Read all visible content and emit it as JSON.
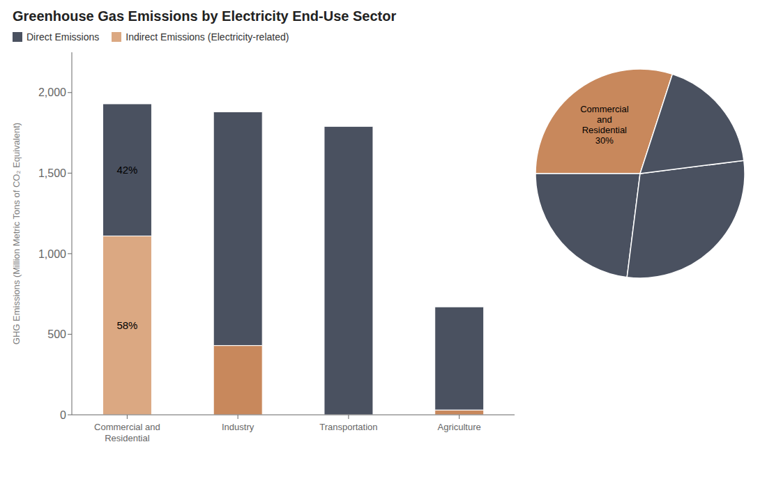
{
  "chart_data": [
    {
      "type": "bar",
      "title": "Greenhouse Gas Emissions by Electricity End-Use Sector",
      "categories": [
        "Commercial and Residential",
        "Industry",
        "Transportation",
        "Agriculture"
      ],
      "series": [
        {
          "name": "Indirect Emissions (Electricity-related)",
          "color": "#DBA882",
          "colors": [
            "#DBA882",
            "#C8885C",
            "#C8885C",
            "#C8885C"
          ],
          "values": [
            1110,
            430,
            0,
            30
          ]
        },
        {
          "name": "Direct Emissions",
          "color": "#4A5160",
          "values": [
            820,
            1450,
            1790,
            640
          ]
        }
      ],
      "stacked": true,
      "ylabel": "GHG Emissions (Million Metric Tons of CO₂ Equivalent)",
      "ylim": [
        0,
        2250
      ],
      "yticks": [
        0,
        500,
        {
          "value": 1000,
          "label": "1,000"
        },
        {
          "value": 1500,
          "label": "1,500"
        },
        {
          "value": 2000,
          "label": "2,000"
        }
      ],
      "grid": false,
      "legend": "upper left",
      "annotations": [
        {
          "text": "58%",
          "category": "Commercial and Residential",
          "series": "Indirect Emissions (Electricity-related)"
        },
        {
          "text": "42%",
          "category": "Commercial and Residential",
          "series": "Direct Emissions"
        }
      ]
    },
    {
      "type": "pie",
      "categories": [
        "Commercial\nand\nResidential",
        null,
        null,
        null
      ],
      "values": [
        30,
        23,
        29,
        18
      ],
      "value_labels": [
        "30%",
        null,
        null,
        null
      ],
      "colors": [
        "#C8885C",
        "#4A5160",
        "#4A5160",
        "#4A5160"
      ]
    }
  ]
}
